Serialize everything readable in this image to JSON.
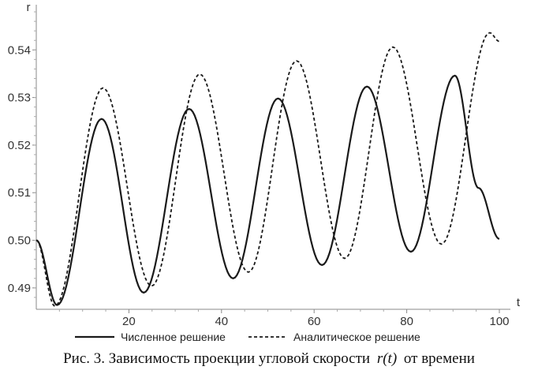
{
  "chart_data": {
    "type": "line",
    "xlabel": "t",
    "ylabel": "r",
    "xlim": [
      0,
      100
    ],
    "ylim": [
      0.4855,
      0.5485
    ],
    "x_ticks": [
      20,
      40,
      60,
      80,
      100
    ],
    "x_tick_labels": [
      "20",
      "40",
      "60",
      "80",
      "100"
    ],
    "y_ticks": [
      0.49,
      0.5,
      0.51,
      0.52,
      0.53,
      0.54
    ],
    "y_tick_labels": [
      "0.49",
      "0.50",
      "0.51",
      "0.52",
      "0.53",
      "0.54"
    ],
    "grid": false,
    "legend_position": "bottom",
    "series": [
      {
        "name": "Численное решение",
        "style": "solid",
        "color": "#1a1a1a",
        "x": [
          0,
          4.5,
          14.1,
          23.2,
          33.0,
          42.5,
          52.2,
          61.7,
          71.4,
          80.9,
          90.4,
          95.5,
          100
        ],
        "values": [
          0.5,
          0.4864,
          0.5255,
          0.489,
          0.5276,
          0.492,
          0.5298,
          0.4948,
          0.5323,
          0.4976,
          0.5346,
          0.511,
          0.5003
        ]
      },
      {
        "name": "Аналитическое решение",
        "style": "dashed",
        "color": "#1a1a1a",
        "x": [
          0,
          4.0,
          14.4,
          24.9,
          35.3,
          45.8,
          56.2,
          66.6,
          77.0,
          87.5,
          97.9,
          100
        ],
        "values": [
          0.5,
          0.4862,
          0.532,
          0.4904,
          0.5349,
          0.4933,
          0.5377,
          0.4962,
          0.5406,
          0.4992,
          0.5436,
          0.5418
        ]
      }
    ]
  },
  "caption": {
    "before": "Рис. 3. Зависимость проекции угловой скорости",
    "symbol": "r(t)",
    "after": "от времени"
  }
}
